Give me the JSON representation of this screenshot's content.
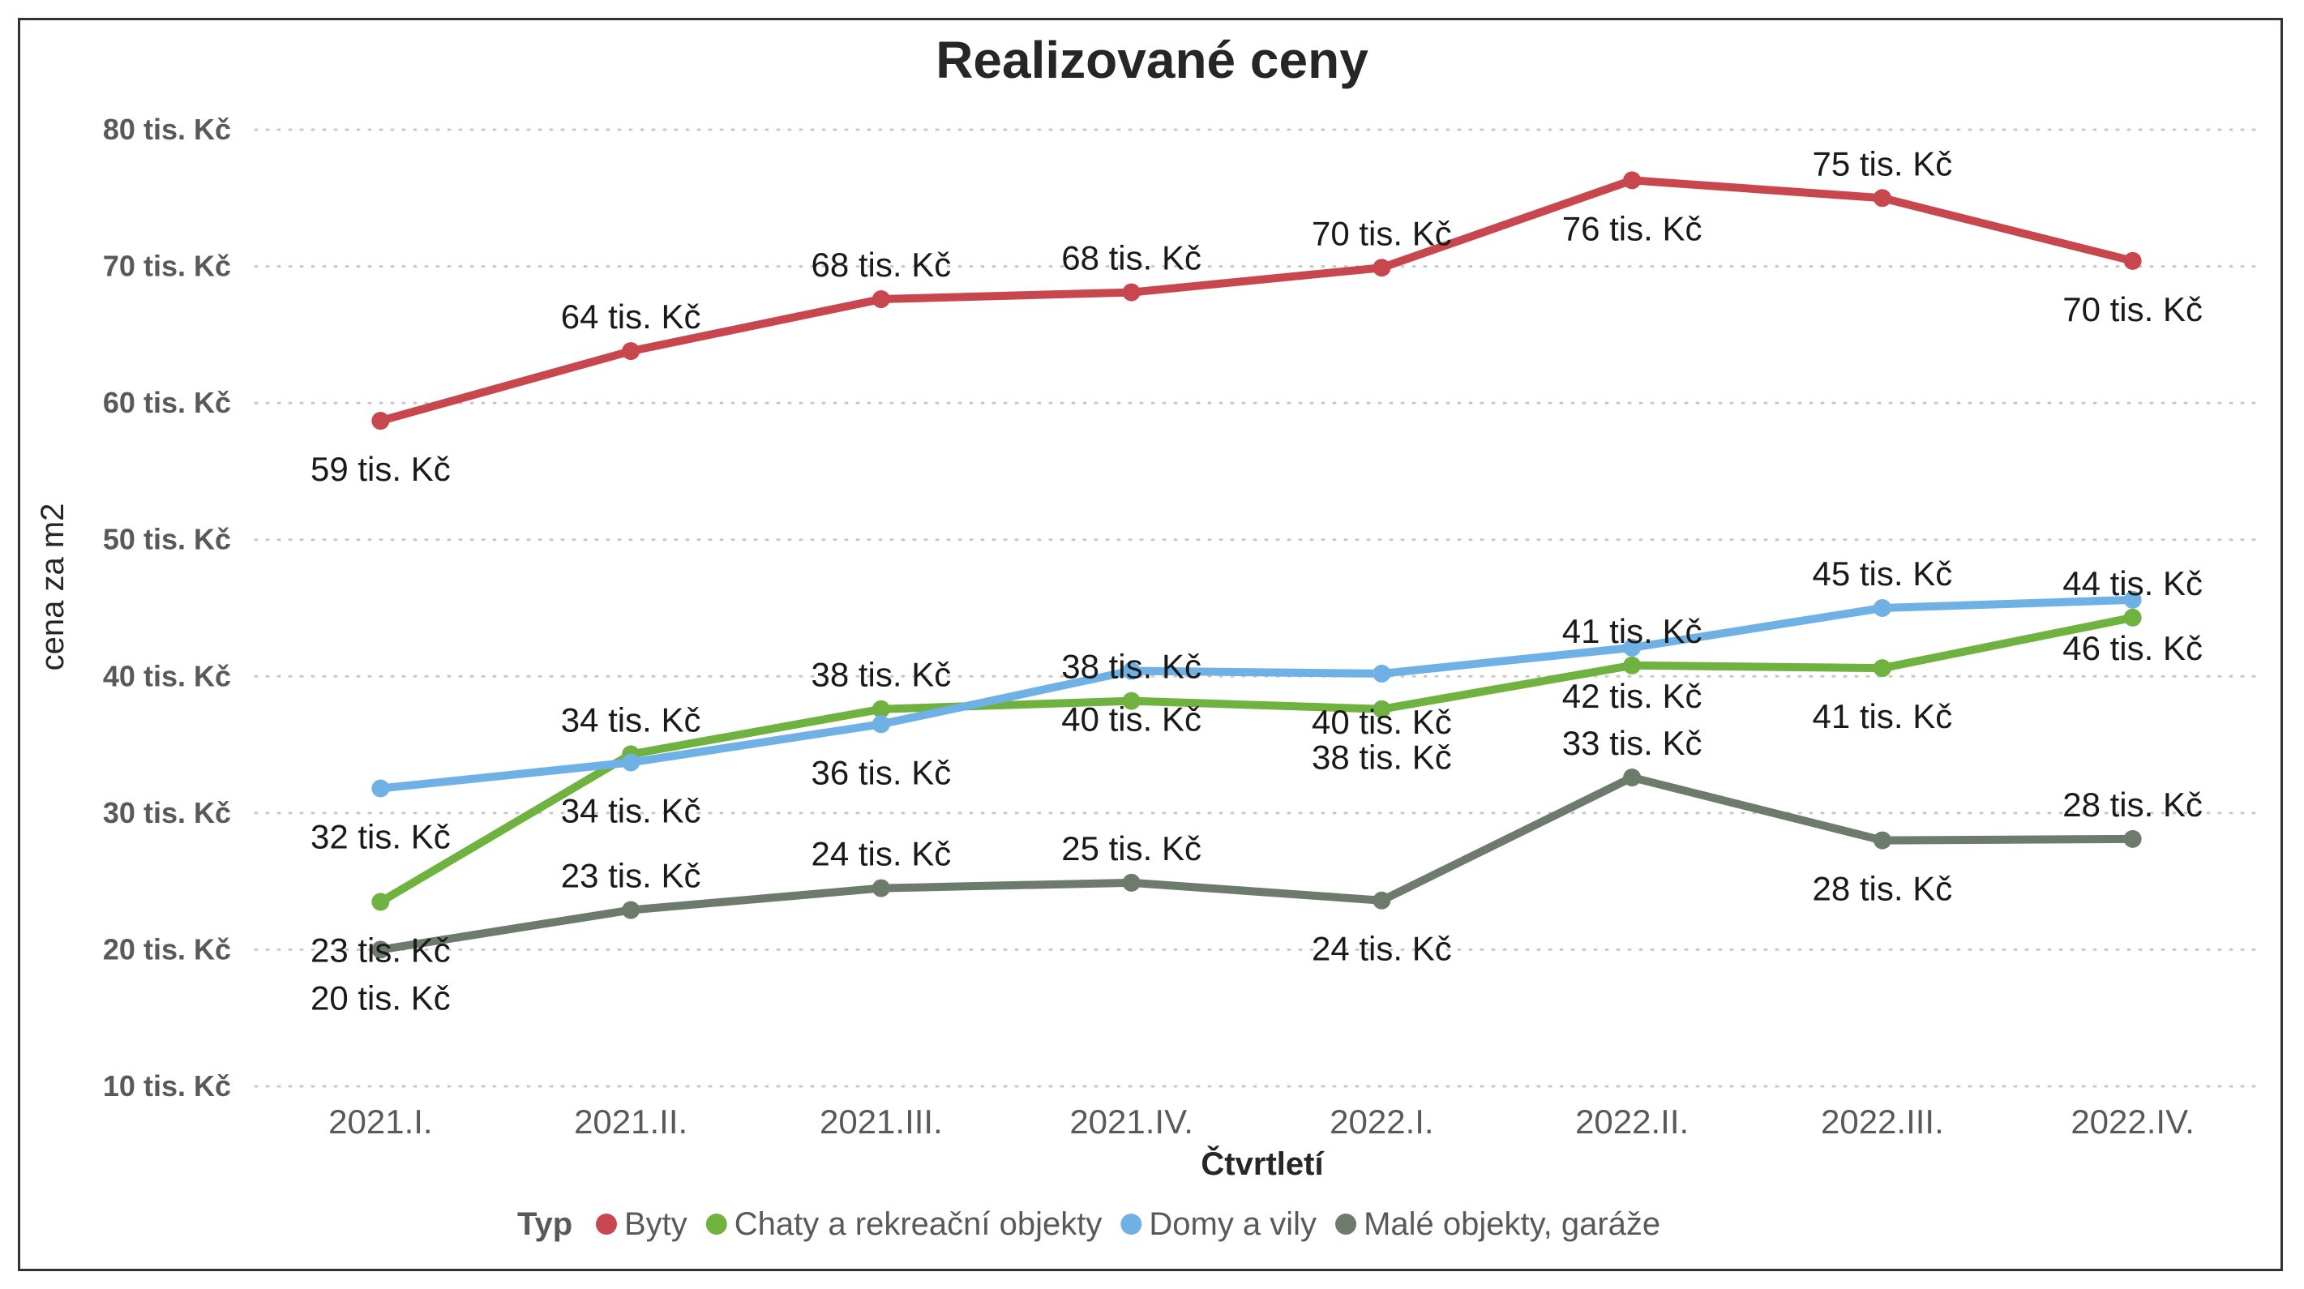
{
  "chart_data": {
    "type": "line",
    "title": "Realizované ceny",
    "xlabel": "Čtvrtletí",
    "ylabel": "cena za m2",
    "categories": [
      "2021.I.",
      "2021.II.",
      "2021.III.",
      "2021.IV.",
      "2022.I.",
      "2022.II.",
      "2022.III.",
      "2022.IV."
    ],
    "y_ticks": [
      "10 tis. Kč",
      "20 tis. Kč",
      "30 tis. Kč",
      "40 tis. Kč",
      "50 tis. Kč",
      "60 tis. Kč",
      "70 tis. Kč",
      "80 tis. Kč"
    ],
    "y_tick_values": [
      10,
      20,
      30,
      40,
      50,
      60,
      70,
      80
    ],
    "ylim": [
      10,
      80
    ],
    "grid": "horizontal dotted",
    "legend_position": "bottom",
    "legend_title": "Typ",
    "series": [
      {
        "name": "Byty",
        "color": "#c8474f",
        "values": [
          58.7,
          63.8,
          67.6,
          68.1,
          69.9,
          76.3,
          75.0,
          70.4
        ],
        "labels": [
          "59 tis. Kč",
          "64 tis. Kč",
          "68 tis. Kč",
          "68 tis. Kč",
          "70 tis. Kč",
          "76 tis. Kč",
          "75 tis. Kč",
          "70 tis. Kč"
        ],
        "label_pos": [
          "below",
          "above",
          "above",
          "above",
          "above",
          "below",
          "above",
          "below"
        ]
      },
      {
        "name": "Chaty a rekreační objekty",
        "color": "#6fb240",
        "values": [
          23.5,
          34.3,
          37.6,
          38.2,
          37.6,
          40.8,
          40.6,
          44.3
        ],
        "labels": [
          "23 tis. Kč",
          "34 tis. Kč",
          "38 tis. Kč",
          "38 tis. Kč",
          "38 tis. Kč",
          "41 tis. Kč",
          "41 tis. Kč",
          "44 tis. Kč"
        ],
        "label_pos": [
          "below",
          "above",
          "above",
          "above",
          "below",
          "above",
          "below",
          "above"
        ]
      },
      {
        "name": "Domy a vily",
        "color": "#6fb1e4",
        "values": [
          31.8,
          33.7,
          36.5,
          40.4,
          40.2,
          42.1,
          45.0,
          45.6
        ],
        "labels": [
          "32 tis. Kč",
          "34 tis. Kč",
          "36 tis. Kč",
          "40 tis. Kč",
          "40 tis. Kč",
          "42 tis. Kč",
          "45 tis. Kč",
          "46 tis. Kč"
        ],
        "label_pos": [
          "below",
          "below",
          "below",
          "below",
          "below",
          "below",
          "above",
          "below"
        ]
      },
      {
        "name": "Malé objekty, garáže",
        "color": "#6c7b6c",
        "values": [
          20.0,
          22.9,
          24.5,
          24.9,
          23.6,
          32.6,
          28.0,
          28.1
        ],
        "labels": [
          "20 tis. Kč",
          "23 tis. Kč",
          "24 tis. Kč",
          "25 tis. Kč",
          "24 tis. Kč",
          "33 tis. Kč",
          "28 tis. Kč",
          "28 tis. Kč"
        ],
        "label_pos": [
          "below",
          "above",
          "above",
          "above",
          "below",
          "above",
          "below",
          "above"
        ]
      }
    ]
  }
}
